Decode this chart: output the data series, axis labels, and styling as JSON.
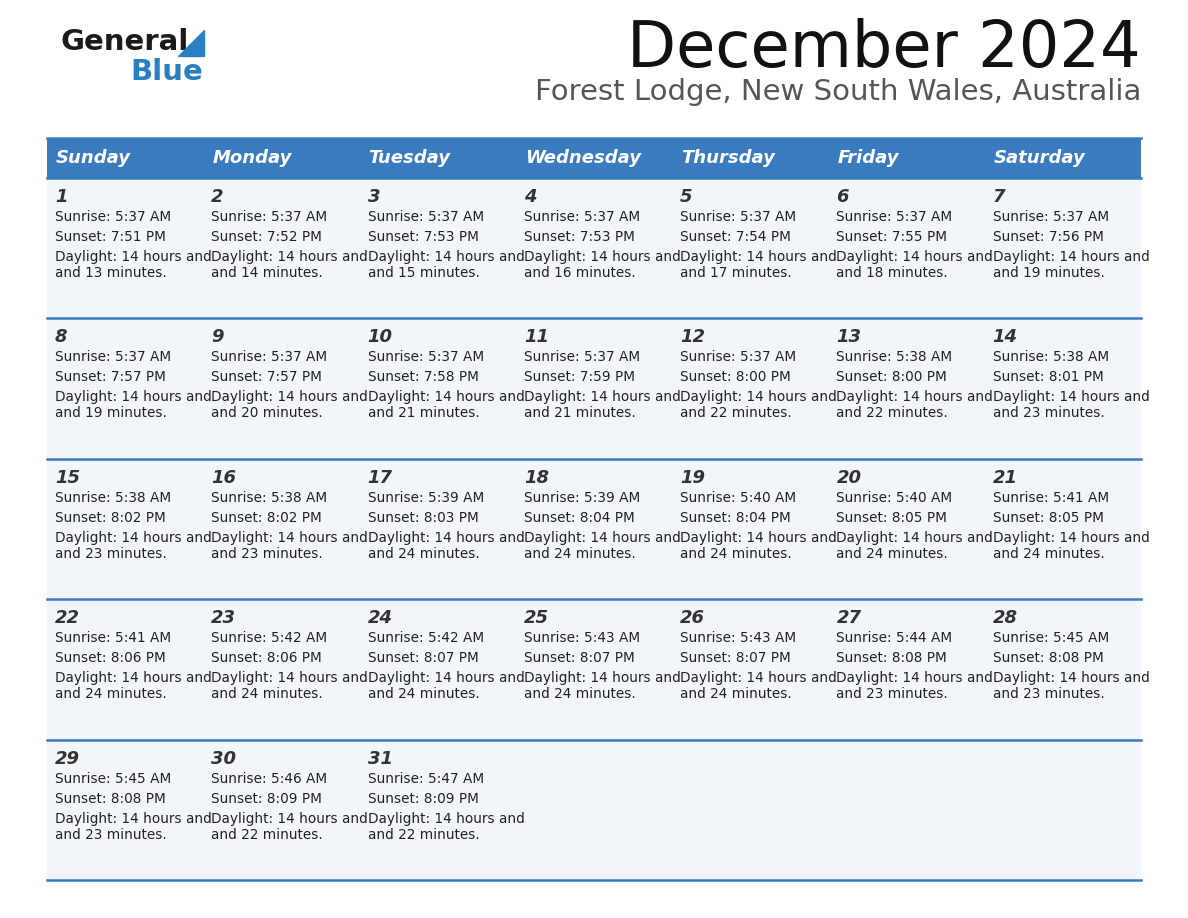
{
  "title": "December 2024",
  "subtitle": "Forest Lodge, New South Wales, Australia",
  "header_color": "#3a7bbf",
  "header_text_color": "#ffffff",
  "cell_bg_odd": "#f2f6fa",
  "cell_bg_even": "#ffffff",
  "separator_color": "#3a7bbf",
  "text_color": "#222222",
  "day_num_color": "#333333",
  "days_of_week": [
    "Sunday",
    "Monday",
    "Tuesday",
    "Wednesday",
    "Thursday",
    "Friday",
    "Saturday"
  ],
  "weeks": [
    [
      {
        "day": 1,
        "sunrise": "5:37 AM",
        "sunset": "7:51 PM",
        "daylight": "14 hours and 13 minutes"
      },
      {
        "day": 2,
        "sunrise": "5:37 AM",
        "sunset": "7:52 PM",
        "daylight": "14 hours and 14 minutes"
      },
      {
        "day": 3,
        "sunrise": "5:37 AM",
        "sunset": "7:53 PM",
        "daylight": "14 hours and 15 minutes"
      },
      {
        "day": 4,
        "sunrise": "5:37 AM",
        "sunset": "7:53 PM",
        "daylight": "14 hours and 16 minutes"
      },
      {
        "day": 5,
        "sunrise": "5:37 AM",
        "sunset": "7:54 PM",
        "daylight": "14 hours and 17 minutes"
      },
      {
        "day": 6,
        "sunrise": "5:37 AM",
        "sunset": "7:55 PM",
        "daylight": "14 hours and 18 minutes"
      },
      {
        "day": 7,
        "sunrise": "5:37 AM",
        "sunset": "7:56 PM",
        "daylight": "14 hours and 19 minutes"
      }
    ],
    [
      {
        "day": 8,
        "sunrise": "5:37 AM",
        "sunset": "7:57 PM",
        "daylight": "14 hours and 19 minutes"
      },
      {
        "day": 9,
        "sunrise": "5:37 AM",
        "sunset": "7:57 PM",
        "daylight": "14 hours and 20 minutes"
      },
      {
        "day": 10,
        "sunrise": "5:37 AM",
        "sunset": "7:58 PM",
        "daylight": "14 hours and 21 minutes"
      },
      {
        "day": 11,
        "sunrise": "5:37 AM",
        "sunset": "7:59 PM",
        "daylight": "14 hours and 21 minutes"
      },
      {
        "day": 12,
        "sunrise": "5:37 AM",
        "sunset": "8:00 PM",
        "daylight": "14 hours and 22 minutes"
      },
      {
        "day": 13,
        "sunrise": "5:38 AM",
        "sunset": "8:00 PM",
        "daylight": "14 hours and 22 minutes"
      },
      {
        "day": 14,
        "sunrise": "5:38 AM",
        "sunset": "8:01 PM",
        "daylight": "14 hours and 23 minutes"
      }
    ],
    [
      {
        "day": 15,
        "sunrise": "5:38 AM",
        "sunset": "8:02 PM",
        "daylight": "14 hours and 23 minutes"
      },
      {
        "day": 16,
        "sunrise": "5:38 AM",
        "sunset": "8:02 PM",
        "daylight": "14 hours and 23 minutes"
      },
      {
        "day": 17,
        "sunrise": "5:39 AM",
        "sunset": "8:03 PM",
        "daylight": "14 hours and 24 minutes"
      },
      {
        "day": 18,
        "sunrise": "5:39 AM",
        "sunset": "8:04 PM",
        "daylight": "14 hours and 24 minutes"
      },
      {
        "day": 19,
        "sunrise": "5:40 AM",
        "sunset": "8:04 PM",
        "daylight": "14 hours and 24 minutes"
      },
      {
        "day": 20,
        "sunrise": "5:40 AM",
        "sunset": "8:05 PM",
        "daylight": "14 hours and 24 minutes"
      },
      {
        "day": 21,
        "sunrise": "5:41 AM",
        "sunset": "8:05 PM",
        "daylight": "14 hours and 24 minutes"
      }
    ],
    [
      {
        "day": 22,
        "sunrise": "5:41 AM",
        "sunset": "8:06 PM",
        "daylight": "14 hours and 24 minutes"
      },
      {
        "day": 23,
        "sunrise": "5:42 AM",
        "sunset": "8:06 PM",
        "daylight": "14 hours and 24 minutes"
      },
      {
        "day": 24,
        "sunrise": "5:42 AM",
        "sunset": "8:07 PM",
        "daylight": "14 hours and 24 minutes"
      },
      {
        "day": 25,
        "sunrise": "5:43 AM",
        "sunset": "8:07 PM",
        "daylight": "14 hours and 24 minutes"
      },
      {
        "day": 26,
        "sunrise": "5:43 AM",
        "sunset": "8:07 PM",
        "daylight": "14 hours and 24 minutes"
      },
      {
        "day": 27,
        "sunrise": "5:44 AM",
        "sunset": "8:08 PM",
        "daylight": "14 hours and 23 minutes"
      },
      {
        "day": 28,
        "sunrise": "5:45 AM",
        "sunset": "8:08 PM",
        "daylight": "14 hours and 23 minutes"
      }
    ],
    [
      {
        "day": 29,
        "sunrise": "5:45 AM",
        "sunset": "8:08 PM",
        "daylight": "14 hours and 23 minutes"
      },
      {
        "day": 30,
        "sunrise": "5:46 AM",
        "sunset": "8:09 PM",
        "daylight": "14 hours and 22 minutes"
      },
      {
        "day": 31,
        "sunrise": "5:47 AM",
        "sunset": "8:09 PM",
        "daylight": "14 hours and 22 minutes"
      },
      null,
      null,
      null,
      null
    ]
  ],
  "logo_general_color": "#1a1a1a",
  "logo_blue_color": "#2980c0",
  "title_fontsize": 46,
  "subtitle_fontsize": 21,
  "header_fontsize": 13,
  "day_num_fontsize": 13,
  "cell_text_fontsize": 9.8,
  "fig_width": 11.88,
  "fig_height": 9.18,
  "dpi": 100
}
